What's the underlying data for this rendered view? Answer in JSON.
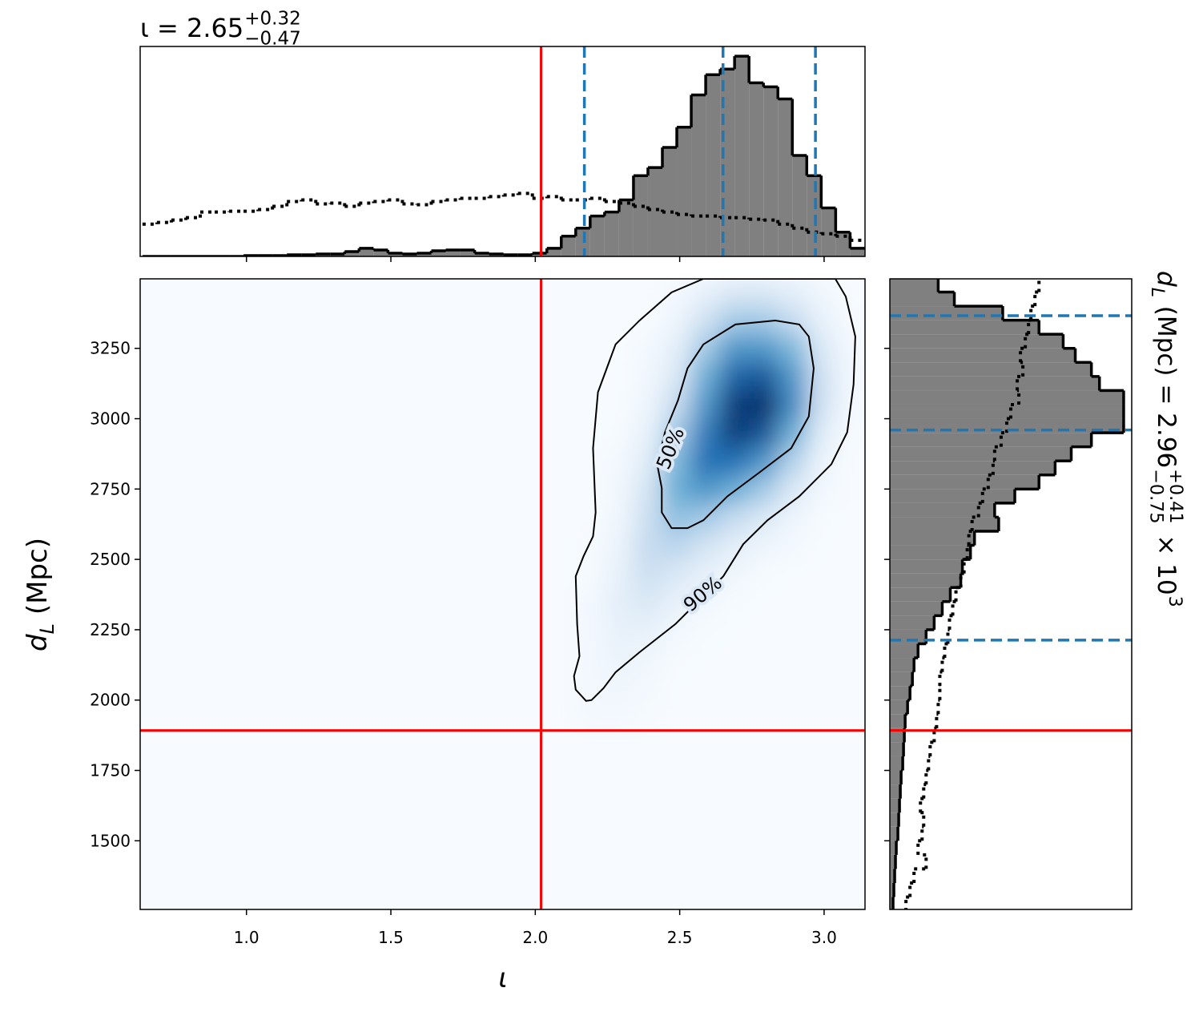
{
  "chart_data": {
    "type": "corner",
    "title": {
      "text": "ι = 2.65",
      "sup": "+0.32",
      "sub": "−0.47"
    },
    "side_title": {
      "base": "d",
      "sub": "L",
      "text": " (Mpc) = 2.96",
      "sup": "+0.41",
      "sub2": "−0.75",
      "times": " × 10",
      "exp": "3"
    },
    "xlabel": "ι",
    "ylabel": {
      "base": "d",
      "sub": "L",
      "text": " (Mpc)"
    },
    "xlim": [
      0.632,
      3.1416
    ],
    "xticks": [
      {
        "value": 1,
        "label": "1.0"
      },
      1.5,
      {
        "value": 2,
        "label": "2.0"
      },
      2.5,
      {
        "value": 3,
        "label": "3.0"
      }
    ],
    "ylim": [
      1256,
      3497
    ],
    "yticks": [
      1500,
      1750,
      2000,
      2250,
      2500,
      2750,
      3000,
      3250
    ],
    "truth": {
      "x": 2.02,
      "y": 1892,
      "color": "#ff0000"
    },
    "quantiles": {
      "x": [
        2.17,
        2.65,
        2.97
      ],
      "y": [
        2213,
        2960,
        3366
      ],
      "color": "#1f77b4"
    },
    "colormap": [
      "#f7fbff",
      "#c6dbef",
      "#6baed6",
      "#2171b5",
      "#08306b"
    ],
    "x_hist": {
      "bins": [
        0.64,
        0.69,
        0.74,
        0.79,
        0.84,
        0.89,
        0.94,
        0.99,
        1.04,
        1.09,
        1.14,
        1.19,
        1.24,
        1.29,
        1.34,
        1.39,
        1.44,
        1.49,
        1.54,
        1.59,
        1.64,
        1.69,
        1.74,
        1.79,
        1.84,
        1.89,
        1.94,
        1.99,
        2.04,
        2.09,
        2.14,
        2.19,
        2.24,
        2.29,
        2.34,
        2.39,
        2.44,
        2.49,
        2.54,
        2.59,
        2.64,
        2.69,
        2.74,
        2.79,
        2.84,
        2.89,
        2.94,
        2.99,
        3.04,
        3.09,
        3.14
      ],
      "lim": [
        0,
        260
      ],
      "series": [
        {
          "style": "filled",
          "color": "#808080",
          "values": [
            0,
            0,
            0,
            0,
            0,
            0,
            0,
            1,
            1,
            1,
            2,
            2,
            3,
            3,
            6,
            10,
            8,
            4,
            3,
            4,
            7,
            8,
            8,
            4,
            3,
            2,
            2,
            4,
            10,
            25,
            35,
            50,
            55,
            70,
            100,
            110,
            135,
            160,
            200,
            225,
            232,
            248,
            215,
            210,
            195,
            125,
            100,
            60,
            30,
            10
          ]
        },
        {
          "style": "dotted",
          "color": "#000000",
          "values": [
            40,
            42,
            45,
            48,
            55,
            55,
            56,
            56,
            58,
            62,
            68,
            70,
            65,
            66,
            62,
            66,
            68,
            70,
            65,
            64,
            68,
            70,
            72,
            72,
            74,
            76,
            78,
            72,
            74,
            70,
            70,
            72,
            68,
            66,
            62,
            58,
            55,
            52,
            50,
            50,
            48,
            48,
            46,
            45,
            40,
            35,
            30,
            28,
            25,
            20
          ]
        }
      ]
    },
    "y_hist": {
      "bins": [
        1250,
        1300,
        1350,
        1400,
        1450,
        1500,
        1550,
        1600,
        1650,
        1700,
        1750,
        1800,
        1850,
        1900,
        1950,
        2000,
        2050,
        2100,
        2150,
        2200,
        2250,
        2300,
        2350,
        2400,
        2450,
        2500,
        2550,
        2600,
        2650,
        2700,
        2750,
        2800,
        2850,
        2900,
        2950,
        3000,
        3050,
        3100,
        3150,
        3200,
        3250,
        3300,
        3350,
        3400,
        3450,
        3500
      ],
      "lim": [
        0,
        300
      ],
      "series": [
        {
          "style": "filled",
          "color": "#808080",
          "values": [
            4,
            5,
            6,
            7,
            8,
            10,
            11,
            12,
            13,
            14,
            16,
            17,
            18,
            19,
            22,
            25,
            28,
            30,
            35,
            45,
            55,
            65,
            75,
            88,
            90,
            100,
            105,
            135,
            130,
            155,
            185,
            205,
            225,
            250,
            290,
            290,
            290,
            260,
            250,
            230,
            215,
            185,
            140,
            80,
            60
          ]
        },
        {
          "style": "dotted",
          "color": "#000000",
          "values": [
            20,
            25,
            30,
            45,
            35,
            40,
            42,
            38,
            42,
            45,
            48,
            50,
            55,
            58,
            60,
            62,
            62,
            65,
            68,
            72,
            74,
            78,
            82,
            88,
            92,
            96,
            98,
            102,
            110,
            115,
            122,
            128,
            130,
            138,
            145,
            150,
            160,
            158,
            165,
            162,
            168,
            172,
            175,
            180,
            185
          ]
        }
      ]
    },
    "density": {
      "x_edges": [
        2.14,
        2.24,
        2.34,
        2.44,
        2.54,
        2.64,
        2.74,
        2.84,
        2.94,
        3.04,
        3.14
      ],
      "y_edges": [
        1900,
        2000,
        2100,
        2200,
        2300,
        2400,
        2500,
        2600,
        2700,
        2800,
        2900,
        3000,
        3100,
        3200,
        3300,
        3400,
        3500
      ],
      "values": [
        [
          0.02,
          0.02,
          0.01,
          0,
          0,
          0,
          0,
          0,
          0,
          0
        ],
        [
          0.02,
          0.04,
          0.02,
          0,
          0,
          0,
          0,
          0,
          0,
          0
        ],
        [
          0.02,
          0.06,
          0.04,
          0.01,
          0,
          0,
          0,
          0,
          0,
          0
        ],
        [
          0.02,
          0.08,
          0.08,
          0.03,
          0.01,
          0,
          0,
          0,
          0,
          0
        ],
        [
          0.02,
          0.1,
          0.15,
          0.08,
          0.03,
          0.01,
          0,
          0,
          0,
          0
        ],
        [
          0.01,
          0.08,
          0.22,
          0.15,
          0.08,
          0.04,
          0.01,
          0,
          0,
          0
        ],
        [
          0.01,
          0.06,
          0.25,
          0.28,
          0.18,
          0.1,
          0.05,
          0.02,
          0,
          0
        ],
        [
          0,
          0.04,
          0.22,
          0.4,
          0.35,
          0.25,
          0.15,
          0.05,
          0.01,
          0
        ],
        [
          0,
          0.03,
          0.18,
          0.5,
          0.6,
          0.5,
          0.35,
          0.15,
          0.03,
          0
        ],
        [
          0,
          0.02,
          0.12,
          0.45,
          0.75,
          0.75,
          0.6,
          0.3,
          0.06,
          0
        ],
        [
          0,
          0.01,
          0.08,
          0.35,
          0.7,
          0.95,
          0.85,
          0.5,
          0.12,
          0.01
        ],
        [
          0,
          0,
          0.05,
          0.25,
          0.6,
          0.95,
          1,
          0.65,
          0.2,
          0.02
        ],
        [
          0,
          0,
          0.03,
          0.15,
          0.5,
          0.8,
          0.85,
          0.6,
          0.2,
          0.03
        ],
        [
          0,
          0,
          0.02,
          0.1,
          0.35,
          0.6,
          0.6,
          0.45,
          0.15,
          0.02
        ],
        [
          0,
          0,
          0,
          0.05,
          0.2,
          0.35,
          0.35,
          0.25,
          0.08,
          0.01
        ],
        [
          0,
          0,
          0,
          0.02,
          0.08,
          0.15,
          0.15,
          0.1,
          0.04,
          0
        ]
      ]
    },
    "contours": [
      {
        "label": "90%",
        "x": [
          2.176,
          2.14,
          2.134,
          2.153,
          2.145,
          2.14,
          2.167,
          2.2,
          2.209,
          2.2,
          2.217,
          2.278,
          2.361,
          2.472,
          2.582,
          3.039,
          3.075,
          3.108,
          3.102,
          3.08,
          3.025,
          2.914,
          2.804,
          2.72,
          2.651,
          2.582,
          2.485,
          2.361,
          2.278,
          2.236,
          2.195
        ],
        "y": [
          1997,
          2037,
          2085,
          2156,
          2270,
          2440,
          2511,
          2582,
          2667,
          2895,
          3094,
          3264,
          3349,
          3449,
          3497,
          3497,
          3434,
          3292,
          3122,
          2952,
          2838,
          2724,
          2639,
          2554,
          2440,
          2369,
          2270,
          2170,
          2099,
          2042,
          2000
        ]
      },
      {
        "label": "50%",
        "x": [
          2.472,
          2.438,
          2.438,
          2.422,
          2.449,
          2.494,
          2.527,
          2.582,
          2.693,
          2.831,
          2.914,
          2.947,
          2.964,
          2.947,
          2.886,
          2.776,
          2.665,
          2.582,
          2.527
        ],
        "y": [
          2611,
          2667,
          2753,
          2838,
          2952,
          3065,
          3179,
          3264,
          3335,
          3349,
          3335,
          3292,
          3179,
          3008,
          2895,
          2809,
          2724,
          2639,
          2611
        ]
      }
    ]
  }
}
